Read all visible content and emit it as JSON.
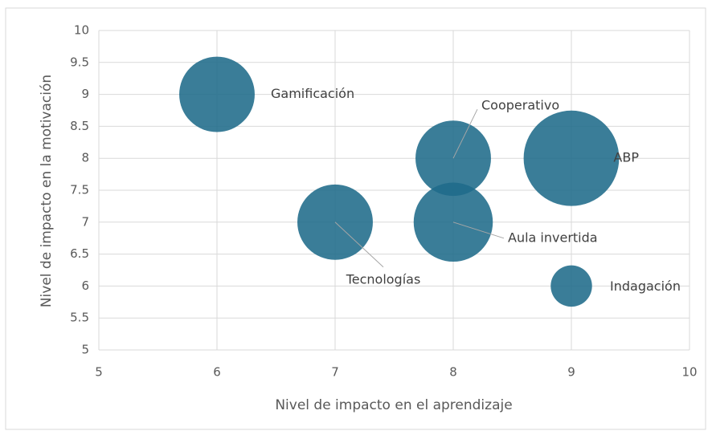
{
  "chart_data": {
    "type": "bubble",
    "x_label": "Nivel de impacto en el aprendizaje",
    "y_label": "Nivel de impacto en la motivación",
    "labels": [
      "Gamificación",
      "Cooperativo",
      "ABP",
      "Tecnologías",
      "Aula invertida",
      "Indagación"
    ],
    "x": [
      6,
      8,
      9,
      7,
      8,
      9
    ],
    "y": [
      9,
      8,
      8,
      7,
      7,
      6
    ],
    "sizes": [
      5,
      5,
      8,
      5,
      5.5,
      1.5
    ],
    "color": "#1f6b8a",
    "xlim": [
      5,
      10
    ],
    "xticks": [
      5,
      6,
      7,
      8,
      9,
      10
    ],
    "ylim": [
      5,
      10
    ],
    "yticks": [
      5,
      5.5,
      6,
      6.5,
      7,
      7.5,
      8,
      8.5,
      9,
      9.5,
      10
    ],
    "grid": true
  }
}
